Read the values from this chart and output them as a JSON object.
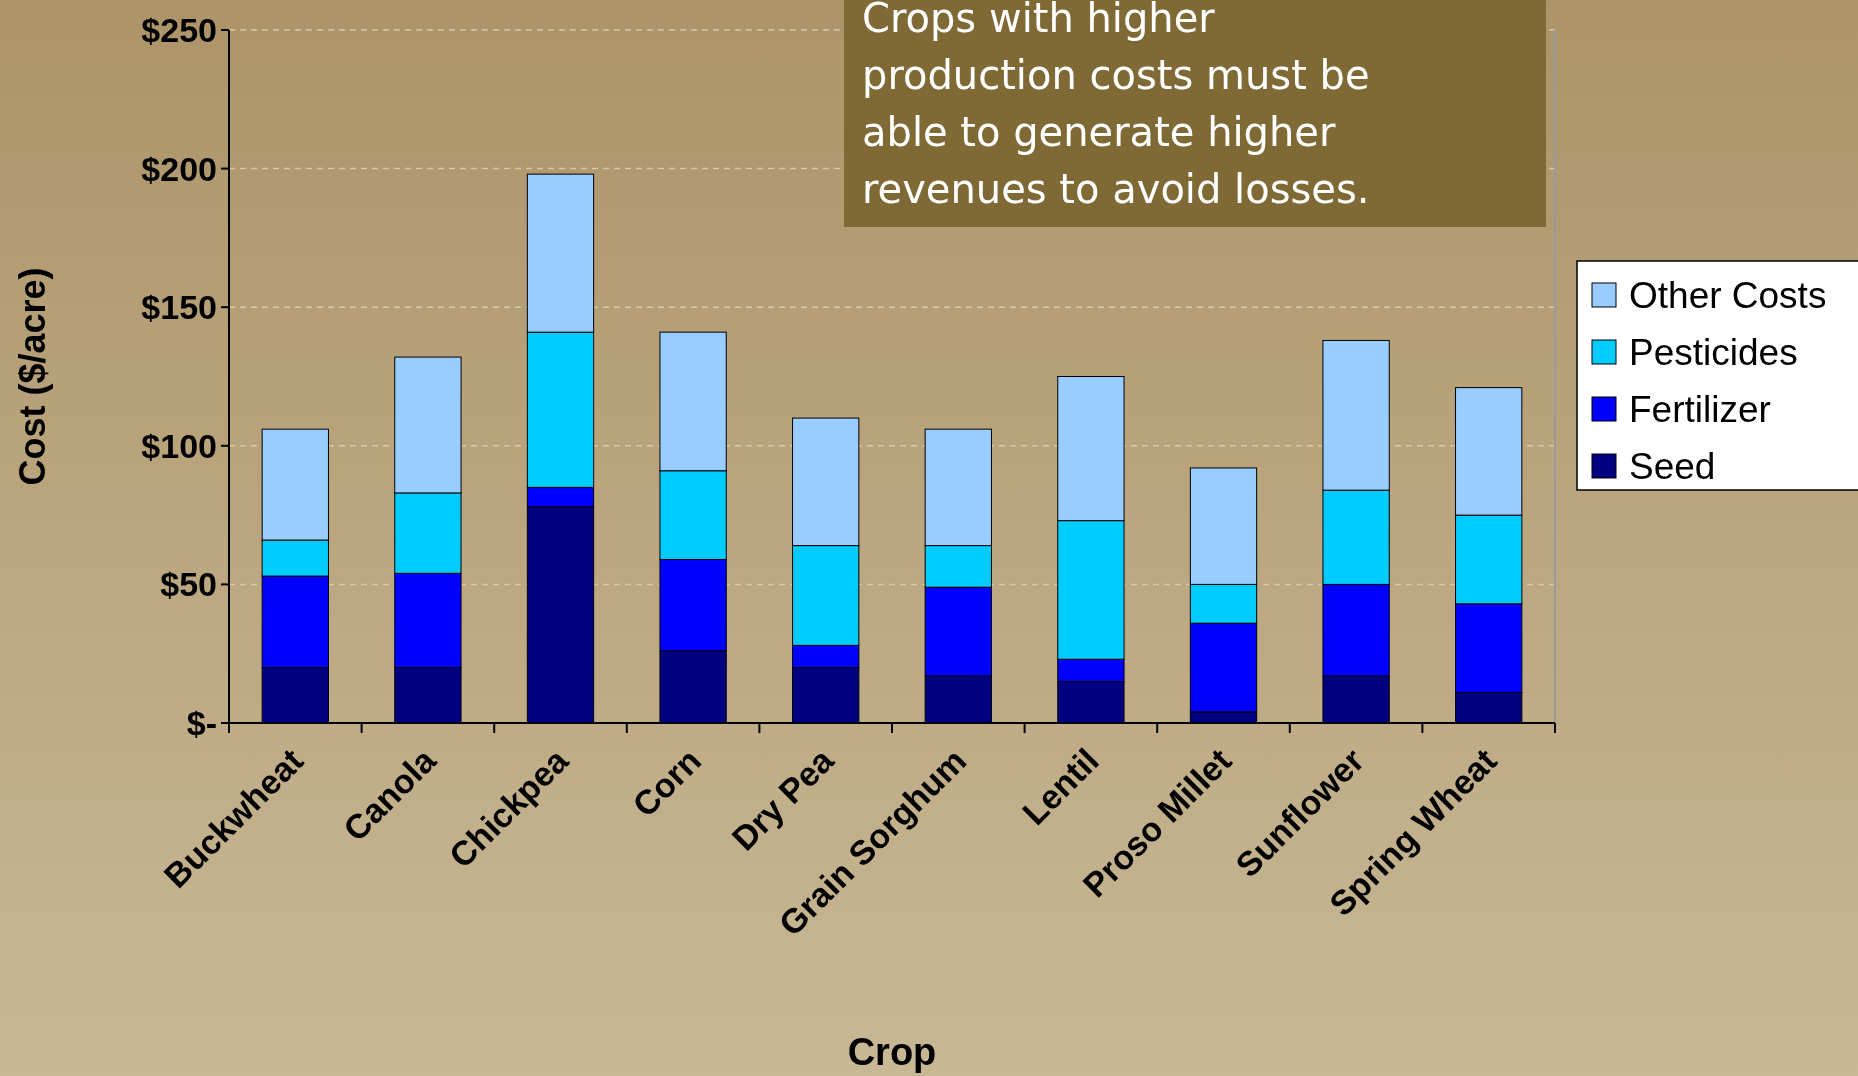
{
  "chart_data": {
    "type": "bar",
    "stacked": true,
    "xlabel": "Crop",
    "ylabel": "Cost ($/acre)",
    "categories": [
      "Buckwheat",
      "Canola",
      "Chickpea",
      "Corn",
      "Dry Pea",
      "Grain Sorghum",
      "Lentil",
      "Proso Millet",
      "Sunflower",
      "Spring Wheat"
    ],
    "series": [
      {
        "name": "Seed",
        "color": "#000080",
        "values": [
          20,
          20,
          78,
          26,
          20,
          17,
          15,
          4,
          17,
          11
        ]
      },
      {
        "name": "Fertilizer",
        "color": "#0000ff",
        "values": [
          33,
          34,
          7,
          33,
          8,
          32,
          8,
          32,
          33,
          32
        ]
      },
      {
        "name": "Pesticides",
        "color": "#00ccff",
        "values": [
          13,
          29,
          56,
          32,
          36,
          15,
          50,
          14,
          34,
          32
        ]
      },
      {
        "name": "Other Costs",
        "color": "#99ccff",
        "values": [
          40,
          49,
          57,
          50,
          46,
          42,
          52,
          42,
          54,
          46
        ]
      }
    ],
    "ylim": [
      0,
      250
    ],
    "yticks": [
      {
        "value": 0,
        "label": "$-"
      },
      {
        "value": 50,
        "label": "$50"
      },
      {
        "value": 100,
        "label": "$100"
      },
      {
        "value": 150,
        "label": "$150"
      },
      {
        "value": 200,
        "label": "$200"
      },
      {
        "value": 250,
        "label": "$250"
      }
    ],
    "grid": "y",
    "legend": "right",
    "annotations": [
      "Crops with higher production costs must be able to generate higher revenues to avoid losses."
    ]
  }
}
